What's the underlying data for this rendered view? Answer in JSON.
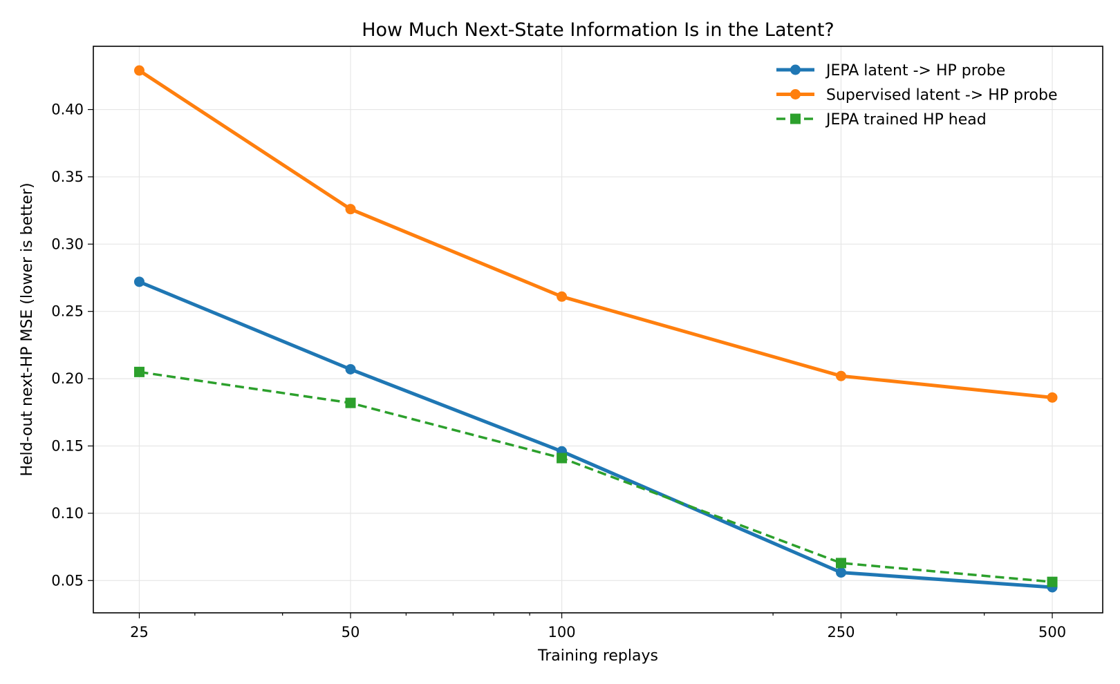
{
  "chart_data": {
    "type": "line",
    "title": "How Much Next-State Information Is in the Latent?",
    "xlabel": "Training replays",
    "ylabel": "Held-out next-HP MSE (lower is better)",
    "x_scale": "log",
    "x": [
      25,
      50,
      100,
      250,
      500
    ],
    "x_tick_labels": [
      "25",
      "50",
      "100",
      "250",
      "500"
    ],
    "xlim": [
      21.5,
      590
    ],
    "ylim": [
      0.026,
      0.447
    ],
    "y_ticks": [
      0.05,
      0.1,
      0.15,
      0.2,
      0.25,
      0.3,
      0.35,
      0.4
    ],
    "y_tick_labels": [
      "0.05",
      "0.10",
      "0.15",
      "0.20",
      "0.25",
      "0.30",
      "0.35",
      "0.40"
    ],
    "grid": true,
    "legend_position": "top-right",
    "series": [
      {
        "name": "JEPA latent -> HP probe",
        "values": [
          0.272,
          0.207,
          0.146,
          0.056,
          0.045
        ],
        "color": "#1f77b4",
        "marker": "circle",
        "line_style": "solid"
      },
      {
        "name": "Supervised latent -> HP probe",
        "values": [
          0.429,
          0.326,
          0.261,
          0.202,
          0.186
        ],
        "color": "#ff7f0e",
        "marker": "circle",
        "line_style": "solid"
      },
      {
        "name": "JEPA trained HP head",
        "values": [
          0.205,
          0.182,
          0.141,
          0.063,
          0.049
        ],
        "color": "#2ca02c",
        "marker": "square",
        "line_style": "dashed"
      }
    ]
  }
}
